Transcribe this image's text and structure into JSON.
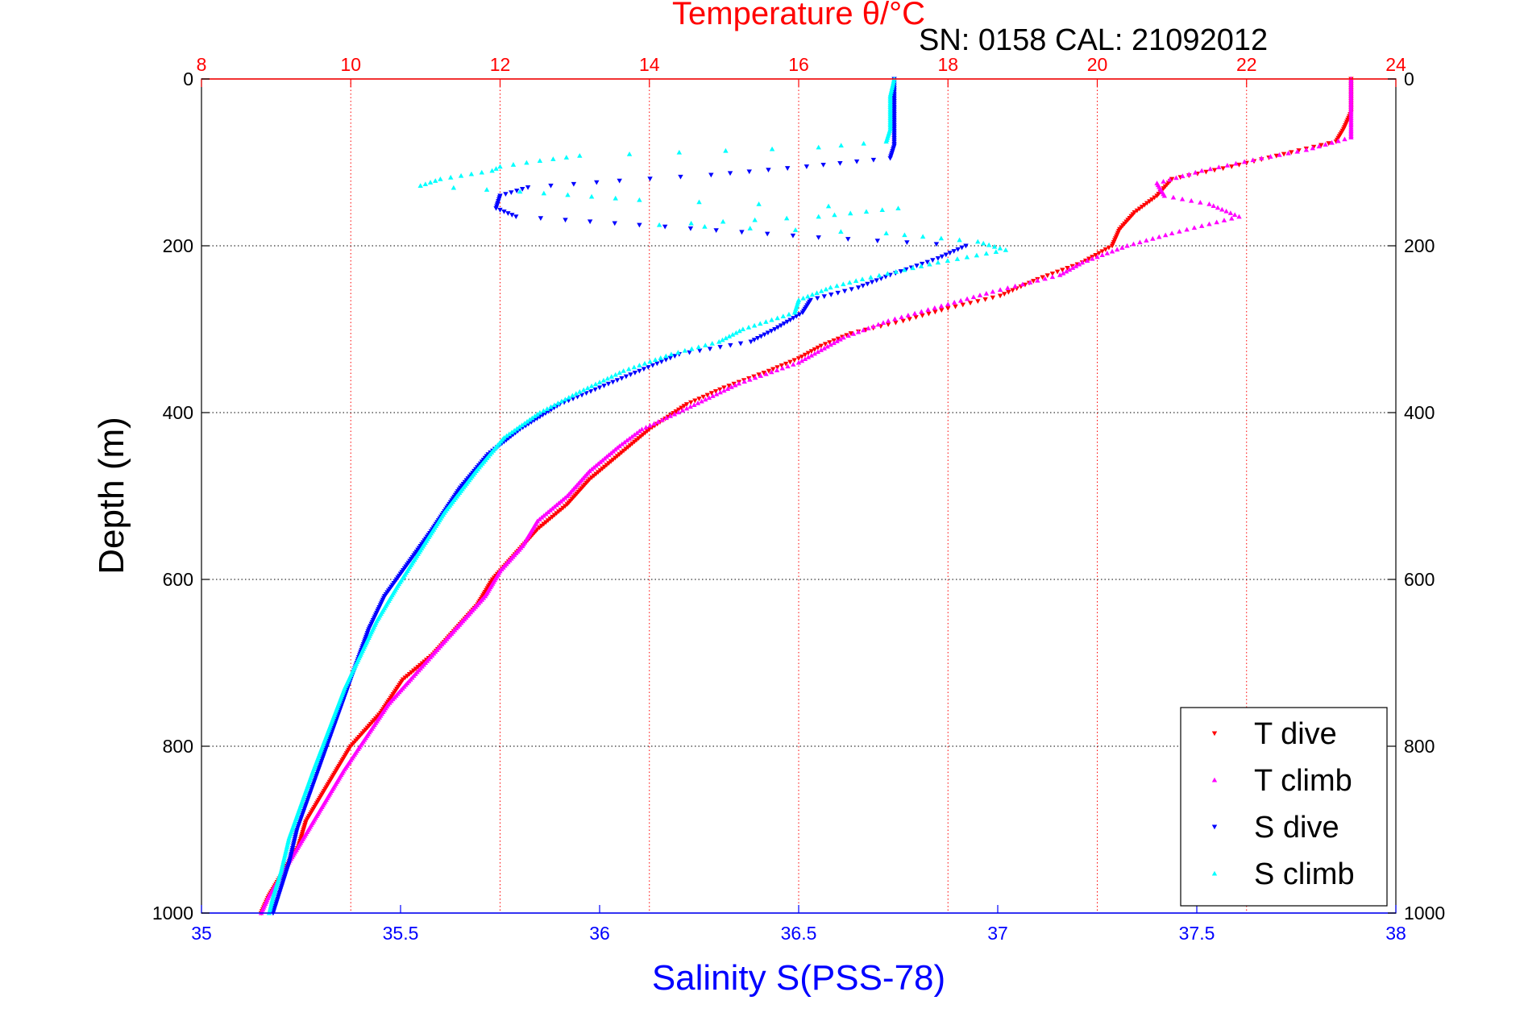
{
  "chart_data": {
    "type": "scatter",
    "title": "Temperature θ/°C",
    "subtitle": "SN: 0158  CAL: 21092012",
    "xlabel": "Salinity S(PSS-78)",
    "ylabel": "Depth (m)",
    "top_axis": {
      "label": "Temperature θ/°C",
      "range": [
        8,
        24
      ],
      "ticks": [
        "8",
        "10",
        "12",
        "14",
        "16",
        "18",
        "20",
        "22",
        "24"
      ],
      "color": "#ff0000"
    },
    "bottom_axis": {
      "label": "Salinity S(PSS-78)",
      "range": [
        35,
        38
      ],
      "ticks": [
        "35",
        "35.5",
        "36",
        "36.5",
        "37",
        "37.5",
        "38"
      ],
      "color": "#0000ff"
    },
    "y_axis": {
      "label": "Depth (m)",
      "range": [
        0,
        1000
      ],
      "reversed": true,
      "ticks": [
        "0",
        "200",
        "400",
        "600",
        "800",
        "1000"
      ]
    },
    "grid": true,
    "legend_position": "bottom-right",
    "series": [
      {
        "name": "T dive",
        "axis": "temperature",
        "color": "#ff0000",
        "marker": "triangle-down",
        "points": [
          [
            23.4,
            0
          ],
          [
            23.4,
            20
          ],
          [
            23.4,
            40
          ],
          [
            23.3,
            60
          ],
          [
            23.2,
            75
          ],
          [
            22.5,
            90
          ],
          [
            21.8,
            105
          ],
          [
            21.0,
            120
          ],
          [
            20.8,
            140
          ],
          [
            20.5,
            160
          ],
          [
            20.3,
            180
          ],
          [
            20.2,
            200
          ],
          [
            19.8,
            220
          ],
          [
            19.2,
            240
          ],
          [
            18.7,
            260
          ],
          [
            18.0,
            275
          ],
          [
            17.4,
            290
          ],
          [
            16.7,
            305
          ],
          [
            16.3,
            320
          ],
          [
            16.0,
            335
          ],
          [
            15.6,
            350
          ],
          [
            15.0,
            370
          ],
          [
            14.5,
            390
          ],
          [
            14.0,
            420
          ],
          [
            13.6,
            450
          ],
          [
            13.2,
            480
          ],
          [
            12.9,
            510
          ],
          [
            12.5,
            540
          ],
          [
            12.2,
            570
          ],
          [
            11.9,
            600
          ],
          [
            11.7,
            630
          ],
          [
            11.4,
            660
          ],
          [
            11.1,
            690
          ],
          [
            10.7,
            720
          ],
          [
            10.4,
            760
          ],
          [
            10.0,
            800
          ],
          [
            9.8,
            830
          ],
          [
            9.6,
            860
          ],
          [
            9.4,
            890
          ],
          [
            9.3,
            920
          ],
          [
            9.1,
            950
          ],
          [
            8.9,
            980
          ],
          [
            8.8,
            1000
          ]
        ]
      },
      {
        "name": "T climb",
        "axis": "temperature",
        "color": "#ff00ff",
        "marker": "triangle-up",
        "points": [
          [
            23.4,
            0
          ],
          [
            23.4,
            20
          ],
          [
            23.4,
            40
          ],
          [
            23.4,
            60
          ],
          [
            23.4,
            70
          ],
          [
            22.8,
            85
          ],
          [
            22.2,
            95
          ],
          [
            21.4,
            110
          ],
          [
            20.8,
            125
          ],
          [
            20.9,
            140
          ],
          [
            21.5,
            150
          ],
          [
            21.9,
            165
          ],
          [
            21.0,
            185
          ],
          [
            20.4,
            200
          ],
          [
            19.8,
            220
          ],
          [
            19.5,
            235
          ],
          [
            18.6,
            255
          ],
          [
            18.0,
            270
          ],
          [
            17.2,
            290
          ],
          [
            16.6,
            310
          ],
          [
            16.0,
            340
          ],
          [
            15.2,
            365
          ],
          [
            14.5,
            395
          ],
          [
            13.9,
            420
          ],
          [
            13.6,
            440
          ],
          [
            13.2,
            470
          ],
          [
            12.9,
            500
          ],
          [
            12.5,
            530
          ],
          [
            12.3,
            560
          ],
          [
            12.0,
            590
          ],
          [
            11.8,
            620
          ],
          [
            11.5,
            650
          ],
          [
            11.2,
            680
          ],
          [
            10.8,
            720
          ],
          [
            10.5,
            750
          ],
          [
            10.2,
            790
          ],
          [
            9.9,
            830
          ],
          [
            9.7,
            860
          ],
          [
            9.5,
            890
          ],
          [
            9.3,
            920
          ],
          [
            9.1,
            950
          ],
          [
            8.9,
            980
          ],
          [
            8.8,
            1000
          ]
        ]
      },
      {
        "name": "S dive",
        "axis": "salinity",
        "color": "#0000ff",
        "marker": "triangle-down",
        "points": [
          [
            36.74,
            0
          ],
          [
            36.74,
            20
          ],
          [
            36.74,
            40
          ],
          [
            36.74,
            60
          ],
          [
            36.74,
            80
          ],
          [
            36.73,
            95
          ],
          [
            36.52,
            105
          ],
          [
            36.28,
            115
          ],
          [
            36.05,
            122
          ],
          [
            35.82,
            130
          ],
          [
            35.75,
            140
          ],
          [
            35.74,
            155
          ],
          [
            35.79,
            165
          ],
          [
            36.1,
            175
          ],
          [
            36.55,
            190
          ],
          [
            36.92,
            200
          ],
          [
            36.85,
            215
          ],
          [
            36.73,
            235
          ],
          [
            36.65,
            250
          ],
          [
            36.53,
            265
          ],
          [
            36.51,
            280
          ],
          [
            36.44,
            300
          ],
          [
            36.38,
            315
          ],
          [
            36.2,
            330
          ],
          [
            36.1,
            350
          ],
          [
            36.0,
            370
          ],
          [
            35.9,
            390
          ],
          [
            35.8,
            420
          ],
          [
            35.72,
            450
          ],
          [
            35.65,
            490
          ],
          [
            35.58,
            540
          ],
          [
            35.52,
            580
          ],
          [
            35.46,
            620
          ],
          [
            35.42,
            660
          ],
          [
            35.39,
            700
          ],
          [
            35.36,
            740
          ],
          [
            35.33,
            780
          ],
          [
            35.3,
            820
          ],
          [
            35.27,
            860
          ],
          [
            35.24,
            900
          ],
          [
            35.22,
            940
          ],
          [
            35.2,
            970
          ],
          [
            35.18,
            1000
          ]
        ]
      },
      {
        "name": "S climb",
        "axis": "salinity",
        "color": "#00ffff",
        "marker": "triangle-up",
        "points": [
          [
            36.74,
            0
          ],
          [
            36.73,
            20
          ],
          [
            36.73,
            40
          ],
          [
            36.73,
            60
          ],
          [
            36.72,
            75
          ],
          [
            36.55,
            82
          ],
          [
            36.2,
            88
          ],
          [
            35.95,
            92
          ],
          [
            35.85,
            98
          ],
          [
            35.75,
            105
          ],
          [
            35.73,
            110
          ],
          [
            35.6,
            120
          ],
          [
            35.55,
            128
          ],
          [
            35.8,
            135
          ],
          [
            36.1,
            145
          ],
          [
            36.4,
            150
          ],
          [
            36.75,
            155
          ],
          [
            36.55,
            165
          ],
          [
            36.15,
            175
          ],
          [
            36.72,
            185
          ],
          [
            36.95,
            195
          ],
          [
            37.02,
            205
          ],
          [
            36.85,
            220
          ],
          [
            36.66,
            240
          ],
          [
            36.58,
            250
          ],
          [
            36.5,
            265
          ],
          [
            36.49,
            280
          ],
          [
            36.36,
            300
          ],
          [
            36.3,
            315
          ],
          [
            36.18,
            330
          ],
          [
            36.06,
            350
          ],
          [
            35.95,
            375
          ],
          [
            35.85,
            400
          ],
          [
            35.76,
            430
          ],
          [
            35.69,
            470
          ],
          [
            35.61,
            520
          ],
          [
            35.55,
            565
          ],
          [
            35.49,
            610
          ],
          [
            35.44,
            650
          ],
          [
            35.4,
            690
          ],
          [
            35.36,
            730
          ],
          [
            35.32,
            780
          ],
          [
            35.28,
            830
          ],
          [
            35.25,
            870
          ],
          [
            35.22,
            910
          ],
          [
            35.2,
            950
          ],
          [
            35.18,
            980
          ],
          [
            35.17,
            1000
          ]
        ]
      }
    ]
  }
}
